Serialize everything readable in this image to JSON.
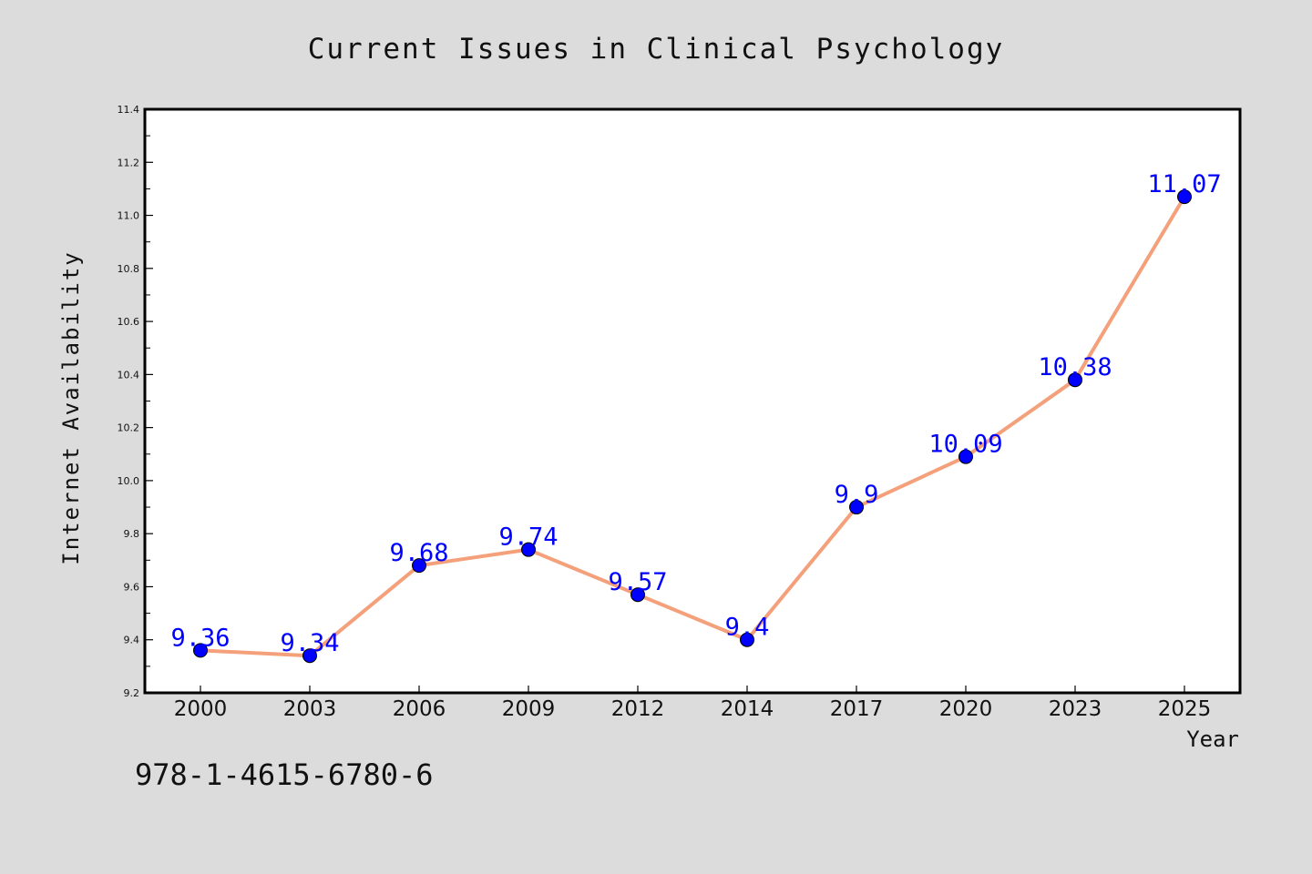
{
  "chart_data": {
    "type": "line",
    "title": "Current Issues in Clinical Psychology",
    "xlabel": "Year",
    "ylabel": "Internet Availability",
    "categories": [
      "2000",
      "2003",
      "2006",
      "2009",
      "2012",
      "2014",
      "2017",
      "2020",
      "2023",
      "2025"
    ],
    "series": [
      {
        "values": [
          9.36,
          9.34,
          9.68,
          9.74,
          9.57,
          9.4,
          9.9,
          10.09,
          10.38,
          11.07
        ],
        "data_labels": [
          "9.36",
          "9.34",
          "9.68",
          "9.74",
          "9.57",
          "9.4",
          "9.9",
          "10.09",
          "10.38",
          "11.07"
        ]
      }
    ],
    "ylim": [
      9.2,
      11.4
    ],
    "yticks": [
      "9.2",
      "9.4",
      "9.6",
      "9.8",
      "10.0",
      "10.2",
      "10.4",
      "10.6",
      "10.8",
      "11.0",
      "11.2",
      "11.4"
    ],
    "grid": false,
    "colors": {
      "background": "#dcdcdc",
      "plot_background": "#ffffff",
      "line": "#f4a07a",
      "marker": "#0000ff",
      "data_label": "#0000ff"
    }
  },
  "annotations": {
    "isbn": "978-1-4615-6780-6"
  }
}
